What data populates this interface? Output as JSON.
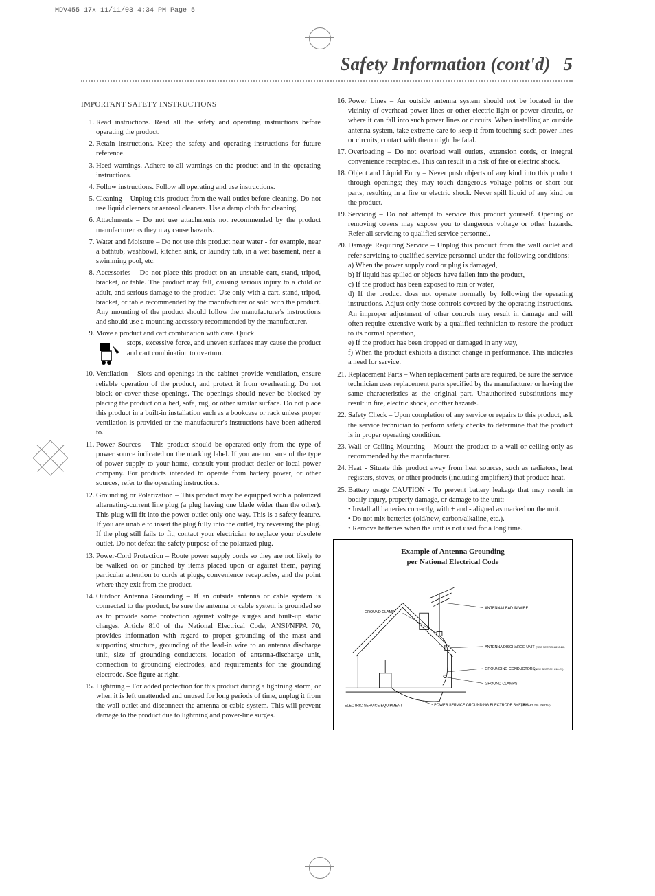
{
  "print_header": "MDV455_17x  11/11/03  4:34 PM  Page 5",
  "title": "Safety Information (cont'd)",
  "page_number": "5",
  "section_heading": "IMPORTANT SAFETY INSTRUCTIONS",
  "left_items": [
    "Read instructions. Read all the safety and operating instructions before operating the product.",
    "Retain instructions. Keep the safety and operating instructions for future reference.",
    "Heed warnings. Adhere to all warnings on the product and in the operating instructions.",
    "Follow instructions. Follow all operating and use instructions.",
    "Cleaning – Unplug this product from the wall outlet before cleaning. Do not use liquid cleaners or aerosol cleaners. Use a damp cloth for cleaning.",
    "Attachments – Do not use attachments not recommended by the product manufacturer as they may cause hazards.",
    "Water and Moisture – Do not use this product near water - for example, near a bathtub, washbowl, kitchen sink, or laundry tub, in a wet basement, near a swimming pool, etc.",
    "Accessories – Do not place this product on an unstable cart, stand, tripod, bracket, or table. The product may fall, causing serious injury to a child or adult, and serious damage to the product. Use only with a cart, stand, tripod, bracket, or table recommended by the manufacturer or sold with the product. Any mounting of the product should follow the manufacturer's instructions and should use a mounting accessory recommended by the manufacturer."
  ],
  "item9_lead": "Move a product and cart combination with care. Quick",
  "item9_rest": "stops, excessive force, and uneven surfaces may cause the product and cart combination to overturn.",
  "left_items_b": [
    "Ventilation – Slots and openings in the cabinet provide ventilation, ensure reliable operation of the product, and protect it from overheating. Do not block or cover these openings. The openings should never be blocked by placing the product on a bed, sofa, rug, or other similar surface. Do not place this product in a built-in installation such as a bookcase or rack unless proper ventilation is provided or the manufacturer's instructions have been adhered to.",
    "Power Sources – This product should be operated only from the type of power source indicated on the marking label. If you are not sure of the type of power supply to your home, consult your product dealer or local power company. For products intended to operate from battery power, or other sources, refer to the operating instructions.",
    "Grounding or Polarization – This product may be equipped with a polarized alternating-current line plug (a plug having one blade wider than the other). This plug will fit into the power outlet only one way. This is a safety feature. If you are unable to insert the plug fully into the outlet, try reversing the plug. If the plug still fails to fit, contact your electrician to replace your obsolete outlet. Do not defeat the safety purpose of the polarized plug.",
    "Power-Cord Protection – Route power supply cords so they are not likely to be walked on or pinched by items placed upon or against them, paying particular attention to cords at plugs, convenience receptacles, and the point where they exit from the product.",
    "Outdoor Antenna Grounding – If an outside antenna or cable system is connected to the product, be sure the antenna or cable system is grounded so as to provide some protection against voltage surges and built-up static charges. Article 810 of the National Electrical Code, ANSI/NFPA 70, provides information with regard to proper grounding of the mast and supporting structure, grounding of the lead-in wire to an antenna discharge unit, size of grounding conductors, location of antenna-discharge unit, connection to grounding electrodes, and requirements for the grounding electrode. See figure at right.",
    "Lightning – For added protection for this product during a lightning storm, or when it is left unattended and unused for long periods of time, unplug it from the wall outlet and disconnect the antenna or cable system. This will prevent damage to the product due to lightning and power-line surges."
  ],
  "right_items": [
    "Power Lines – An outside antenna system should not be located in the vicinity of overhead power lines or other electric light or power circuits, or where it can fall into such power lines or circuits. When installing an outside antenna system, take extreme care to keep it from touching such power lines or circuits; contact with them might be fatal.",
    "Overloading – Do not overload wall outlets, extension cords, or integral convenience receptacles. This can result in a risk of fire or electric shock.",
    "Object and Liquid Entry – Never push objects of any kind into this product through openings; they may touch dangerous voltage points or short out parts, resulting in a fire or electric shock. Never spill liquid of any kind on the product.",
    "Servicing – Do not attempt to service this product yourself. Opening or removing covers may expose you to dangerous voltage or other hazards. Refer all servicing to qualified service personnel.",
    "Damage Requiring Service – Unplug this product from the wall outlet and refer servicing to qualified service personnel under the following conditions:\na) When the power supply cord or plug is damaged,\nb) If liquid has spilled or objects have fallen into the product,\nc) If the product has been exposed to rain or water,\nd) If the product does not operate normally by following the operating instructions. Adjust only those controls covered by the operating instructions. An improper adjustment of other controls may result in damage and will often require extensive work by a qualified technician to restore the product to its normal operation,\ne) If the product has been dropped or damaged in any way,\nf) When the product exhibits a distinct change in performance. This indicates a need for service.",
    "Replacement Parts – When replacement parts are required, be sure the service technician uses replacement parts specified by the manufacturer or having the same characteristics as the original part. Unauthorized substitutions may result in fire, electric shock, or other hazards.",
    "Safety Check – Upon completion of any service or repairs to this product, ask the service technician to perform safety checks to determine that the product is in proper operating condition.",
    "Wall or Ceiling Mounting – Mount the product to a wall or ceiling only as recommended by the manufacturer.",
    "Heat - Situate this product away from heat sources, such as radiators, heat registers, stoves, or other products (including amplifiers) that produce heat.",
    "Battery usage CAUTION - To prevent battery leakage that may result in bodily injury, property damage, or damage to the unit:\n• Install all batteries correctly, with + and - aligned as marked on the unit.\n• Do not mix batteries (old/new, carbon/alkaline, etc.).\n• Remove batteries when the unit is not used for a long time."
  ],
  "diagram": {
    "title_l1": "Example of Antenna Grounding",
    "title_l2": "per National Electrical Code",
    "labels": {
      "ground_clamp": "GROUND CLAMP",
      "antenna_lead": "ANTENNA LEAD IN WIRE",
      "discharge_unit": "ANTENNA DISCHARGE UNIT",
      "discharge_unit_ref": "(NEC SECTION 810-20)",
      "grounding_conductors": "GROUNDING CONDUCTORS",
      "grounding_conductors_ref": "(NEC SECTION 810-21)",
      "ground_clamps": "GROUND CLAMPS",
      "electric_service": "ELECTRIC SERVICE EQUIPMENT",
      "electrode_system": "POWER SERVICE GROUNDING ELECTRODE SYSTEM",
      "electrode_system_ref": "(NEC ART 250, PART H)"
    }
  },
  "colors": {
    "text": "#222222",
    "border": "#000000",
    "dotted": "#999999"
  }
}
